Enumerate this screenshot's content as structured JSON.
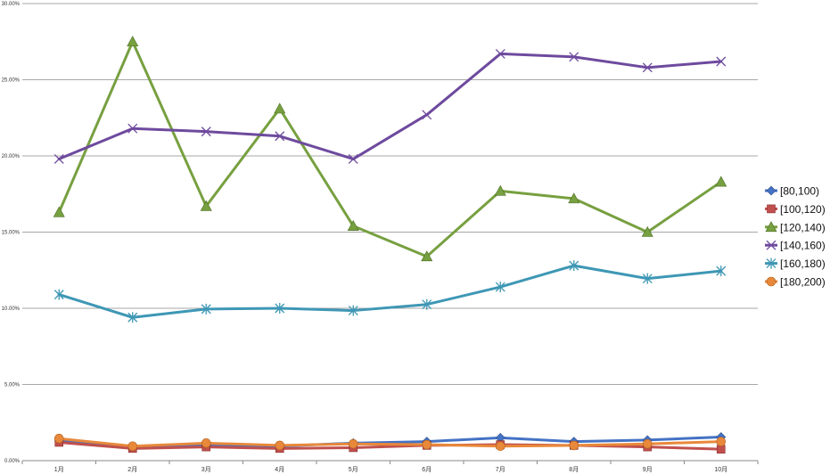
{
  "chart_data": {
    "type": "line",
    "categories": [
      "1月",
      "2月",
      "3月",
      "4月",
      "5月",
      "6月",
      "7月",
      "8月",
      "9月",
      "10月"
    ],
    "ylim": [
      0,
      0.3
    ],
    "yticks": [
      0,
      0.05,
      0.1,
      0.15,
      0.2,
      0.25,
      0.3
    ],
    "ytick_labels": [
      "0.00%",
      "5.00%",
      "10.00%",
      "15.00%",
      "20.00%",
      "25.00%",
      "30.00%"
    ],
    "grid": true,
    "legend_position": "right",
    "series": [
      {
        "name": "[80,100)",
        "color": "#4472C4",
        "marker": "diamond",
        "values": [
          0.013,
          0.009,
          0.01,
          0.0095,
          0.0115,
          0.0125,
          0.015,
          0.0125,
          0.0135,
          0.0155
        ]
      },
      {
        "name": "[100,120)",
        "color": "#C0504D",
        "marker": "square",
        "values": [
          0.012,
          0.008,
          0.009,
          0.008,
          0.0085,
          0.01,
          0.0105,
          0.01,
          0.009,
          0.0075
        ]
      },
      {
        "name": "[120,140)",
        "color": "#77A040",
        "marker": "triangle",
        "values": [
          0.163,
          0.275,
          0.167,
          0.231,
          0.154,
          0.134,
          0.177,
          0.172,
          0.15,
          0.183
        ]
      },
      {
        "name": "[140,160)",
        "color": "#6E4A9E",
        "marker": "x",
        "values": [
          0.198,
          0.218,
          0.216,
          0.213,
          0.198,
          0.227,
          0.267,
          0.265,
          0.258,
          0.262
        ]
      },
      {
        "name": "[160,180)",
        "color": "#3E97B5",
        "marker": "star",
        "values": [
          0.109,
          0.094,
          0.0995,
          0.1,
          0.0985,
          0.1025,
          0.114,
          0.128,
          0.1195,
          0.1245
        ]
      },
      {
        "name": "[180,200)",
        "color": "#E8883A",
        "marker": "circle",
        "values": [
          0.0145,
          0.0095,
          0.0115,
          0.01,
          0.011,
          0.0105,
          0.0095,
          0.01,
          0.011,
          0.0125
        ]
      }
    ]
  }
}
